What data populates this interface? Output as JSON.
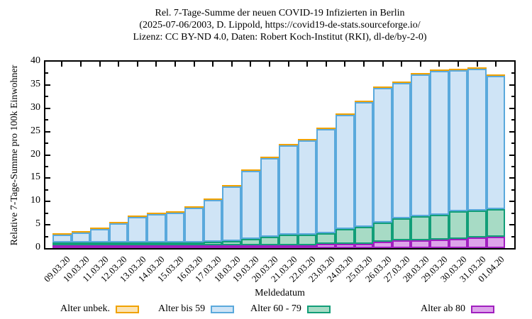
{
  "title": {
    "line1": "Rel. 7-Tage-Summe der neuen COVID-19 Infizierten in Berlin",
    "line2": "(2025-07-06/2003, D. Lippold, https://covid19-de-stats.sourceforge.io/",
    "line3": "Lizenz: CC BY-ND 4.0, Daten: Robert Koch-Institut (RKI), dl-de/by-2-0)"
  },
  "axes": {
    "y_label": "Relative 7-Tage-Summe pro 100k Einwohner",
    "x_label": "Meldedatum",
    "y_ticks": [
      0,
      5,
      10,
      15,
      20,
      25,
      30,
      35,
      40
    ],
    "y_minor_step": 2.5,
    "y_range": [
      0,
      40
    ]
  },
  "legend": [
    {
      "label": "Alter unbek.",
      "fill": "#fbe3b3",
      "border": "#f0a202"
    },
    {
      "label": "Alter bis 59",
      "fill": "#cfe4f6",
      "border": "#5aa9dc"
    },
    {
      "label": "Alter 60 - 79",
      "fill": "#a7dbc5",
      "border": "#129e78"
    },
    {
      "label": "Alter ab 80",
      "fill": "#dda4ea",
      "border": "#a11fbf"
    }
  ],
  "chart_data": {
    "type": "bar",
    "stacked": true,
    "title": "Rel. 7-Tage-Summe der neuen COVID-19 Infizierten in Berlin",
    "xlabel": "Meldedatum",
    "ylabel": "Relative 7-Tage-Summe pro 100k Einwohner",
    "ylim": [
      0,
      40
    ],
    "grid": false,
    "legend_position": "bottom",
    "categories": [
      "09.03.20",
      "10.03.20",
      "11.03.20",
      "12.03.20",
      "13.03.20",
      "14.03.20",
      "15.03.20",
      "16.03.20",
      "17.03.20",
      "18.03.20",
      "19.03.20",
      "20.03.20",
      "21.03.20",
      "22.03.20",
      "23.03.20",
      "24.03.20",
      "25.03.20",
      "26.03.20",
      "27.03.20",
      "28.03.20",
      "29.03.20",
      "30.03.20",
      "31.03.20",
      "01.04.20"
    ],
    "series": [
      {
        "name": "Alter ab 80",
        "fill": "#dda4ea",
        "border": "#a11fbf",
        "values": [
          0.1,
          0.1,
          0.1,
          0.15,
          0.15,
          0.2,
          0.2,
          0.25,
          0.3,
          0.3,
          0.4,
          0.5,
          0.45,
          0.55,
          0.95,
          0.95,
          0.9,
          1.3,
          1.65,
          1.65,
          1.8,
          2.0,
          2.3,
          2.4
        ]
      },
      {
        "name": "Alter 60 - 79",
        "fill": "#a7dbc5",
        "border": "#129e78",
        "values": [
          0.1,
          0.15,
          0.2,
          0.25,
          0.35,
          0.45,
          0.5,
          0.6,
          0.75,
          0.9,
          1.4,
          1.9,
          2.3,
          2.35,
          2.35,
          3.15,
          3.7,
          4.1,
          4.7,
          5.15,
          5.35,
          5.9,
          5.8,
          5.9
        ]
      },
      {
        "name": "Alter bis 59",
        "fill": "#cfe4f6",
        "border": "#5aa9dc",
        "values": [
          1.6,
          2.15,
          2.85,
          4.05,
          5.45,
          6.1,
          6.45,
          7.5,
          8.9,
          11.75,
          14.65,
          16.85,
          19.2,
          20.25,
          22.35,
          24.45,
          26.75,
          28.85,
          29.1,
          30.35,
          30.8,
          30.25,
          30.35,
          28.65
        ]
      },
      {
        "name": "Alter unbek.",
        "fill": "#fbe3b3",
        "border": "#f0a202",
        "values": [
          0.05,
          0.05,
          0.05,
          0.05,
          0.05,
          0.05,
          0.05,
          0.05,
          0.05,
          0.05,
          0.05,
          0.05,
          0.05,
          0.05,
          0.05,
          0.05,
          0.05,
          0.05,
          0.05,
          0.05,
          0.05,
          0.05,
          0.05,
          0.05
        ]
      }
    ],
    "totals_approx": [
      1.8,
      2.4,
      3.2,
      4.5,
      6.0,
      6.8,
      7.2,
      8.4,
      10.0,
      13.0,
      16.5,
      19.3,
      22.0,
      23.2,
      25.7,
      28.6,
      31.4,
      34.3,
      35.5,
      37.2,
      38.0,
      38.2,
      38.5,
      37.0
    ]
  }
}
